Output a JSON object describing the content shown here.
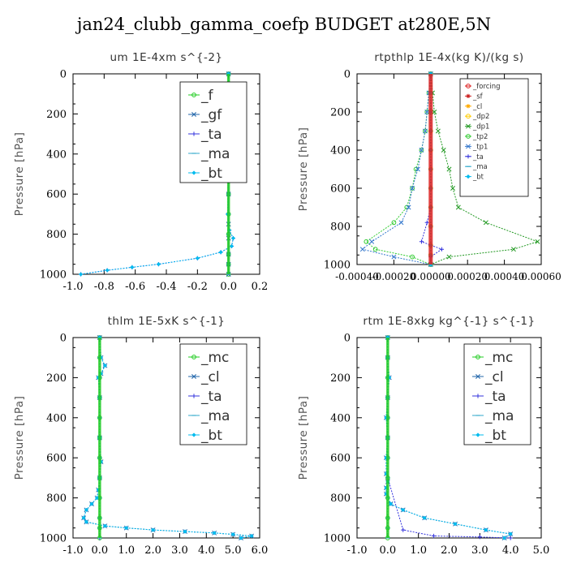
{
  "figure_title": "jan24_clubb_gamma_coefp  BUDGET at280E,5N",
  "chart_data": [
    {
      "type": "line",
      "title": "um  1E-4xm s^{-2}",
      "xlabel": "",
      "ylabel": "Pressure [hPa]",
      "xlim": [
        -1.0,
        0.2
      ],
      "ylim": [
        1000,
        0
      ],
      "xticks": [
        "-1.0",
        "-0.8",
        "-0.6",
        "-0.4",
        "-0.2",
        "0.0",
        "0.2"
      ],
      "xtick_values": [
        -1.0,
        -0.8,
        -0.6,
        -0.4,
        -0.2,
        0.0,
        0.2
      ],
      "yticks": [
        "0",
        "200",
        "400",
        "600",
        "800",
        "1000"
      ],
      "legend_position": "top-right",
      "legend_size": "large",
      "series": [
        {
          "name": "_f",
          "color": "#22cc22",
          "marker": "circle",
          "x": [
            0,
            0,
            0,
            0,
            0,
            0,
            0,
            0,
            0,
            0,
            0,
            0
          ],
          "y": [
            0,
            100,
            200,
            300,
            400,
            500,
            600,
            700,
            800,
            900,
            950,
            1000
          ]
        },
        {
          "name": "_gf",
          "color": "#2266aa",
          "marker": "x",
          "x": [
            0.0,
            0.01,
            0.03,
            0.01,
            0.0,
            0.0,
            0.0,
            0.0,
            0.0,
            0.0,
            0.0,
            0.0
          ],
          "y": [
            0,
            120,
            160,
            200,
            260,
            400,
            600,
            750,
            820,
            900,
            950,
            1000
          ]
        },
        {
          "name": "_ta",
          "color": "#3333dd",
          "marker": "plus",
          "x": [
            0.0,
            0.005,
            0.02,
            0.015,
            0.0,
            0.0,
            -0.005,
            0.005,
            0.03,
            0.02,
            -0.05,
            -0.2,
            -0.45,
            -0.62,
            -0.78,
            -0.95
          ],
          "y": [
            0,
            100,
            150,
            200,
            300,
            500,
            700,
            780,
            820,
            860,
            890,
            920,
            950,
            965,
            980,
            1000
          ]
        },
        {
          "name": "_ma",
          "color": "#33aacc",
          "marker": "dash",
          "x": [
            0,
            0,
            0,
            0,
            0,
            0,
            0,
            0,
            0,
            0,
            0,
            0
          ],
          "y": [
            0,
            100,
            200,
            300,
            400,
            500,
            600,
            700,
            800,
            900,
            950,
            1000
          ]
        },
        {
          "name": "_bt",
          "color": "#00bbee",
          "marker": "diamond",
          "x": [
            0.0,
            0.005,
            0.02,
            0.015,
            0.0,
            0.0,
            -0.005,
            0.005,
            0.03,
            0.02,
            -0.05,
            -0.2,
            -0.45,
            -0.62,
            -0.78,
            -0.95
          ],
          "y": [
            0,
            100,
            150,
            200,
            300,
            500,
            700,
            780,
            820,
            860,
            890,
            920,
            950,
            965,
            980,
            1000
          ]
        }
      ]
    },
    {
      "type": "line",
      "title": "rtpthlp  1E-4x(kg K)/(kg s)",
      "xlabel": "",
      "ylabel": "Pressure [hPa]",
      "xlim": [
        -0.0004,
        0.0006
      ],
      "ylim": [
        1000,
        0
      ],
      "xticks": [
        "-0.00040",
        "-0.00020",
        "0.00000",
        "0.00020",
        "0.00040",
        "0.00060"
      ],
      "xtick_values": [
        -0.0004,
        -0.0002,
        0.0,
        0.0002,
        0.0004,
        0.0006
      ],
      "yticks": [
        "0",
        "200",
        "400",
        "600",
        "800",
        "1000"
      ],
      "legend_position": "top-right",
      "legend_size": "small",
      "series": [
        {
          "name": "_forcing",
          "color": "#dd2222",
          "marker": "circle",
          "x": [
            0,
            0,
            0,
            0,
            0,
            0,
            0,
            0,
            0,
            0,
            0,
            0
          ],
          "y": [
            0,
            100,
            200,
            300,
            400,
            500,
            600,
            700,
            800,
            900,
            950,
            1000
          ]
        },
        {
          "name": "_sf",
          "color": "#cc2222",
          "marker": "star",
          "x": [
            0,
            0,
            0,
            0,
            0,
            0,
            0,
            0,
            0,
            0,
            0,
            0
          ],
          "y": [
            0,
            100,
            200,
            300,
            400,
            500,
            600,
            700,
            800,
            900,
            950,
            1000
          ]
        },
        {
          "name": "_cl",
          "color": "#ffaa00",
          "marker": "star",
          "x": [
            0,
            0,
            0,
            0,
            0,
            0,
            0,
            0,
            0,
            0,
            0,
            0
          ],
          "y": [
            0,
            100,
            200,
            300,
            400,
            500,
            600,
            700,
            800,
            900,
            950,
            1000
          ]
        },
        {
          "name": "_dp2",
          "color": "#ffcc00",
          "marker": "circle",
          "x": [
            0,
            0,
            0,
            0,
            0,
            0,
            0,
            0,
            0,
            0,
            0,
            0
          ],
          "y": [
            0,
            100,
            200,
            300,
            400,
            500,
            600,
            700,
            800,
            900,
            950,
            1000
          ]
        },
        {
          "name": "_dp1",
          "color": "#229922",
          "marker": "x",
          "x": [
            0.0,
            1e-05,
            2e-05,
            4e-05,
            7e-05,
            0.0001,
            0.00012,
            0.00015,
            0.0003,
            0.00058,
            0.00045,
            0.0001,
            0.0
          ],
          "y": [
            0,
            100,
            200,
            300,
            400,
            500,
            600,
            700,
            780,
            880,
            920,
            960,
            1000
          ]
        },
        {
          "name": "_tp2",
          "color": "#33cc33",
          "marker": "circle",
          "x": [
            0.0,
            -1e-05,
            -2e-05,
            -3e-05,
            -5e-05,
            -8e-05,
            -0.0001,
            -0.00013,
            -0.0002,
            -0.00035,
            -0.0003,
            -0.0001,
            0.0
          ],
          "y": [
            0,
            100,
            200,
            300,
            400,
            500,
            600,
            700,
            780,
            880,
            920,
            960,
            1000
          ]
        },
        {
          "name": "_tp1",
          "color": "#3377cc",
          "marker": "x",
          "x": [
            0.0,
            -1e-05,
            -2e-05,
            -3e-05,
            -5e-05,
            -7e-05,
            -0.0001,
            -0.00012,
            -0.00016,
            -0.00032,
            -0.00037,
            -0.0002,
            0.0
          ],
          "y": [
            0,
            100,
            200,
            300,
            400,
            500,
            600,
            700,
            780,
            880,
            920,
            960,
            1000
          ]
        },
        {
          "name": "_ta",
          "color": "#3333dd",
          "marker": "plus",
          "x": [
            0.0,
            0.0,
            0.0,
            0.0,
            0.0,
            0.0,
            0.0,
            0.0,
            -2e-05,
            -5e-05,
            6e-05,
            0.0,
            0.0
          ],
          "y": [
            0,
            100,
            200,
            300,
            400,
            500,
            600,
            700,
            780,
            880,
            920,
            960,
            1000
          ]
        },
        {
          "name": "_ma",
          "color": "#33aacc",
          "marker": "dash",
          "x": [
            0,
            0,
            0,
            0,
            0,
            0,
            0,
            0,
            0,
            0,
            0,
            0
          ],
          "y": [
            0,
            100,
            200,
            300,
            400,
            500,
            600,
            700,
            800,
            900,
            950,
            1000
          ]
        },
        {
          "name": "_bt",
          "color": "#00bbee",
          "marker": "diamond",
          "x": [
            0,
            0,
            0,
            0,
            0,
            0,
            0,
            0,
            0,
            0,
            0,
            0
          ],
          "y": [
            0,
            100,
            200,
            300,
            400,
            500,
            600,
            700,
            800,
            900,
            950,
            1000
          ]
        }
      ]
    },
    {
      "type": "line",
      "title": "thlm  1E-5xK s^{-1}",
      "xlabel": "",
      "ylabel": "Pressure [hPa]",
      "xlim": [
        -1.0,
        6.0
      ],
      "ylim": [
        1000,
        0
      ],
      "xticks": [
        "-1.0",
        "0.0",
        "1.0",
        "2.0",
        "3.0",
        "4.0",
        "5.0",
        "6.0"
      ],
      "xtick_values": [
        -1.0,
        0.0,
        1.0,
        2.0,
        3.0,
        4.0,
        5.0,
        6.0
      ],
      "yticks": [
        "0",
        "200",
        "400",
        "600",
        "800",
        "1000"
      ],
      "legend_position": "top-right",
      "legend_size": "large",
      "series": [
        {
          "name": "_mc",
          "color": "#22cc22",
          "marker": "circle",
          "x": [
            0,
            0,
            0,
            0,
            0,
            0,
            0,
            0,
            0,
            0,
            0,
            0
          ],
          "y": [
            0,
            100,
            200,
            300,
            400,
            500,
            600,
            700,
            800,
            900,
            950,
            1000
          ]
        },
        {
          "name": "_cl",
          "color": "#2266aa",
          "marker": "x",
          "x": [
            0.0,
            0.05,
            0.2,
            0.05,
            -0.05,
            0.0,
            0.0,
            0.05,
            0.0,
            -0.05,
            -0.1,
            -0.3,
            -0.5,
            -0.6,
            -0.5,
            0.2,
            1.0,
            2.0,
            3.2,
            4.3,
            5.0,
            5.7,
            5.3
          ],
          "y": [
            0,
            100,
            140,
            180,
            200,
            300,
            500,
            620,
            700,
            760,
            800,
            830,
            860,
            900,
            920,
            940,
            950,
            960,
            968,
            975,
            982,
            990,
            1000
          ]
        },
        {
          "name": "_ta",
          "color": "#3333dd",
          "marker": "plus",
          "x": [
            0,
            0,
            0,
            0,
            0,
            0,
            0,
            0,
            0,
            0,
            0,
            0
          ],
          "y": [
            0,
            100,
            200,
            300,
            400,
            500,
            600,
            700,
            800,
            900,
            950,
            1000
          ]
        },
        {
          "name": "_ma",
          "color": "#33aacc",
          "marker": "dash",
          "x": [
            0,
            0,
            0,
            0,
            0,
            0,
            0,
            0,
            0,
            0,
            0,
            0
          ],
          "y": [
            0,
            100,
            200,
            300,
            400,
            500,
            600,
            700,
            800,
            900,
            950,
            1000
          ]
        },
        {
          "name": "_bt",
          "color": "#00bbee",
          "marker": "diamond",
          "x": [
            0.0,
            0.05,
            0.2,
            0.05,
            -0.05,
            0.0,
            0.0,
            0.05,
            0.0,
            -0.05,
            -0.1,
            -0.3,
            -0.5,
            -0.6,
            -0.5,
            0.2,
            1.0,
            2.0,
            3.2,
            4.3,
            5.0,
            5.7,
            5.3
          ],
          "y": [
            0,
            100,
            140,
            180,
            200,
            300,
            500,
            620,
            700,
            760,
            800,
            830,
            860,
            900,
            920,
            940,
            950,
            960,
            968,
            975,
            982,
            990,
            1000
          ]
        }
      ]
    },
    {
      "type": "line",
      "title": "rtm  1E-8xkg kg^{-1} s^{-1}",
      "xlabel": "",
      "ylabel": "Pressure [hPa]",
      "xlim": [
        -1.0,
        5.0
      ],
      "ylim": [
        1000,
        0
      ],
      "xticks": [
        "-1.0",
        "0.0",
        "1.0",
        "2.0",
        "3.0",
        "4.0",
        "5.0"
      ],
      "xtick_values": [
        -1.0,
        0.0,
        1.0,
        2.0,
        3.0,
        4.0,
        5.0
      ],
      "yticks": [
        "0",
        "200",
        "400",
        "600",
        "800",
        "1000"
      ],
      "legend_position": "top-right",
      "legend_size": "large",
      "series": [
        {
          "name": "_mc",
          "color": "#22cc22",
          "marker": "circle",
          "x": [
            0,
            0,
            0,
            0,
            0,
            0,
            0,
            0,
            0,
            0,
            0,
            0
          ],
          "y": [
            0,
            100,
            200,
            300,
            400,
            500,
            600,
            700,
            800,
            900,
            950,
            1000
          ]
        },
        {
          "name": "_cl",
          "color": "#2266aa",
          "marker": "x",
          "x": [
            0.0,
            0.0,
            0.05,
            0.0,
            -0.05,
            0.0,
            -0.05,
            -0.05,
            0.0,
            -0.05,
            -0.05,
            0.1,
            0.5,
            1.2,
            2.2,
            3.2,
            4.0,
            3.8
          ],
          "y": [
            0,
            100,
            200,
            300,
            400,
            500,
            600,
            680,
            720,
            750,
            780,
            830,
            860,
            900,
            930,
            960,
            980,
            1000
          ]
        },
        {
          "name": "_ta",
          "color": "#3333dd",
          "marker": "plus",
          "x": [
            0,
            0,
            0,
            0,
            0,
            0,
            0,
            0,
            0.5,
            1.5,
            3.0,
            4.0
          ],
          "y": [
            0,
            100,
            200,
            300,
            400,
            500,
            600,
            700,
            960,
            990,
            995,
            1000
          ]
        },
        {
          "name": "_ma",
          "color": "#33aacc",
          "marker": "dash",
          "x": [
            0,
            0,
            0,
            0,
            0,
            0,
            0,
            0,
            0,
            0,
            0,
            0
          ],
          "y": [
            0,
            100,
            200,
            300,
            400,
            500,
            600,
            700,
            800,
            900,
            950,
            1000
          ]
        },
        {
          "name": "_bt",
          "color": "#00bbee",
          "marker": "diamond",
          "x": [
            0.0,
            0.0,
            0.05,
            0.0,
            -0.05,
            0.0,
            -0.05,
            -0.05,
            0.0,
            -0.05,
            -0.05,
            0.1,
            0.5,
            1.2,
            2.2,
            3.2,
            4.0,
            3.8
          ],
          "y": [
            0,
            100,
            200,
            300,
            400,
            500,
            600,
            680,
            720,
            750,
            780,
            830,
            860,
            900,
            930,
            960,
            980,
            1000
          ]
        }
      ]
    }
  ]
}
